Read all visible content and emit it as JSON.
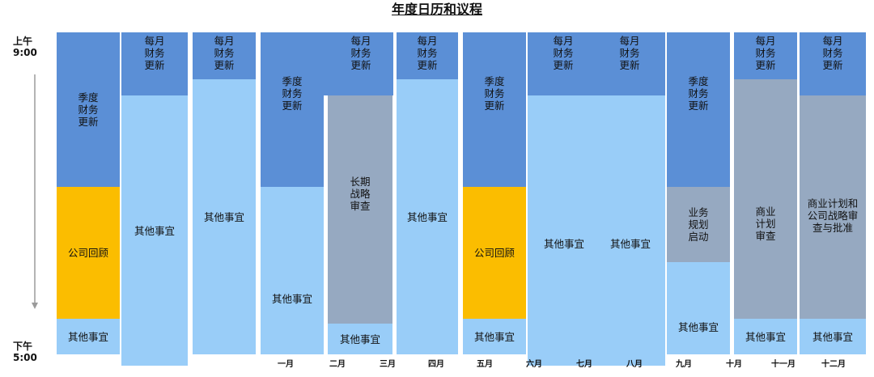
{
  "title": "年度日历和议程",
  "time": {
    "start_line1": "上午",
    "start_line2": "9:00",
    "end_line1": "下午",
    "end_line2": "5:00"
  },
  "colors": {
    "finance_update": "#5b8fd6",
    "other_matters": "#99cdf8",
    "company_review": "#fbbd00",
    "strategy_planning": "#96a9c1"
  },
  "blocks": {
    "quarterly_1": "季度\n财务\n更新",
    "company_review_1": "公司回顾",
    "other_1": "其他事宜",
    "monthly_1": "每月\n财务\n更新",
    "other_2": "其他事宜",
    "monthly_2": "每月\n财务\n更新",
    "other_3": "其他事宜",
    "quarterly_2": "季度\n财务\n更新",
    "other_4": "其他事宜",
    "monthly_3": "每月\n财务\n更新",
    "long_term_review": "长期\n战略\n审查",
    "other_5": "其他事宜",
    "monthly_4": "每月\n财务\n更新",
    "other_6": "其他事宜",
    "quarterly_3": "季度\n财务\n更新",
    "company_review_2": "公司回顾",
    "other_7": "其他事宜",
    "monthly_5": "每月\n财务\n更新",
    "monthly_6": "每月\n财务\n更新",
    "other_8": "其他事宜",
    "other_9": "其他事宜",
    "quarterly_4": "季度\n财务\n更新",
    "business_planning": "业务\n规划\n启动",
    "other_10": "其他事宜",
    "monthly_7": "每月\n财务\n更新",
    "business_plan_review": "商业\n计划\n审查",
    "other_11": "其他事宜",
    "monthly_8": "每月\n财务\n更新",
    "plan_strategy_approval": "商业计划和\n公司战略审\n查与批准",
    "other_12": "其他事宜"
  },
  "months": {
    "m1": "一月",
    "m2": "二月",
    "m3": "三月",
    "m4": "四月",
    "m5": "五月",
    "m6": "六月",
    "m7": "七月",
    "m8": "八月",
    "m9": "九月",
    "m10": "十月",
    "m11": "十一月",
    "m12": "十二月"
  }
}
